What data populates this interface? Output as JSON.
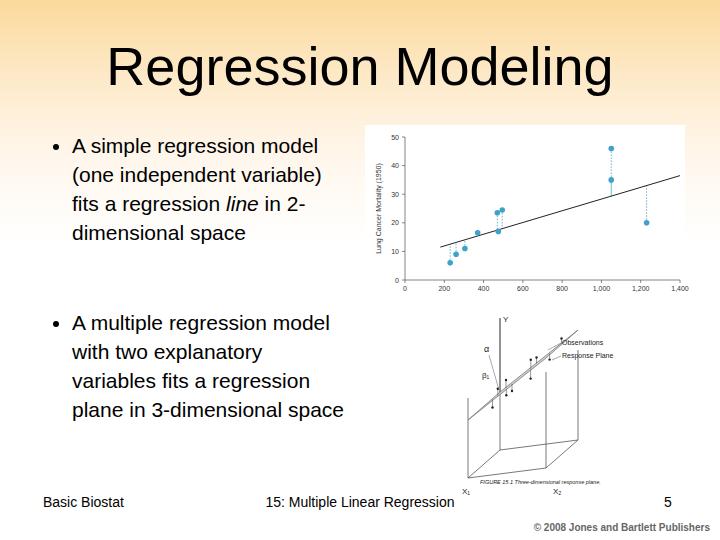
{
  "slide": {
    "title": "Regression Modeling",
    "bullets": [
      {
        "parts": [
          {
            "text": "A simple regression model (one independent variable) fits a regression "
          },
          {
            "text": "line",
            "italic": true
          },
          {
            "text": " in 2-dimensional space"
          }
        ]
      },
      {
        "parts": [
          {
            "text": "A multiple regression model with two explanatory variables fits a regression plane in 3-dimensional space"
          }
        ]
      }
    ],
    "footer": {
      "left": "Basic Biostat",
      "center": "15: Multiple Linear Regression",
      "page": "5",
      "copyright": "© 2008 Jones and Bartlett Publishers"
    }
  },
  "chart_data": {
    "type": "scatter",
    "y_label": "Lung Cancer Mortality (1950)",
    "x": [
      230,
      260,
      305,
      370,
      470,
      495,
      475,
      1050,
      1050,
      1230
    ],
    "values": [
      6,
      9,
      11,
      16.5,
      23.5,
      24.5,
      17,
      46,
      35,
      20
    ],
    "color": "#3fa2c8",
    "marker": "circle",
    "xlim": [
      0,
      1400
    ],
    "ylim": [
      0,
      50
    ],
    "xticks": [
      0,
      200,
      400,
      600,
      800,
      {
        "value": 1000,
        "label": "1,000"
      },
      {
        "value": 1200,
        "label": "1,200"
      },
      {
        "value": 1400,
        "label": "1,400"
      }
    ],
    "yticks": [
      0,
      10,
      20,
      30,
      40,
      50
    ],
    "regression_line": {
      "x": [
        180,
        1400
      ],
      "values": [
        11.5,
        36.5
      ]
    }
  },
  "diagram": {
    "labels": {
      "y_axis": "Y",
      "x1_axis": "X₁",
      "x2_axis": "X₂",
      "intercept": "α",
      "slope": "β₁",
      "observations": "Observations",
      "plane": "Response Plane"
    },
    "caption": "FIGURE 15.1 Three-dimensional response plane."
  }
}
